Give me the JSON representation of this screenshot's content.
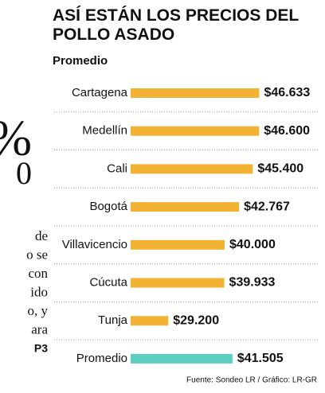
{
  "chart_data": {
    "type": "bar",
    "orientation": "horizontal",
    "title": "ASÍ ESTÁN LOS PRECIOS DEL POLLO ASADO",
    "subtitle": "Promedio",
    "categories": [
      "Cartagena",
      "Medellín",
      "Cali",
      "Bogotá",
      "Villavicencio",
      "Cúcuta",
      "Tunja",
      "Promedio"
    ],
    "values": [
      46633,
      46600,
      45400,
      42767,
      40000,
      39933,
      29200,
      41505
    ],
    "value_labels": [
      "$46.633",
      "$46.600",
      "$45.400",
      "$42.767",
      "$40.000",
      "$39.933",
      "$29.200",
      "$41.505"
    ],
    "colors": [
      "#f2b233",
      "#f2b233",
      "#f2b233",
      "#f2b233",
      "#f2b233",
      "#f2b233",
      "#f2b233",
      "#5ccfc0"
    ],
    "source": "Fuente: Sondeo LR / Gráfico: LR-GR"
  },
  "fragments": [
    "%",
    "0",
    "de",
    "o se",
    "con",
    "ido",
    "o, y",
    "ara",
    "P3"
  ]
}
